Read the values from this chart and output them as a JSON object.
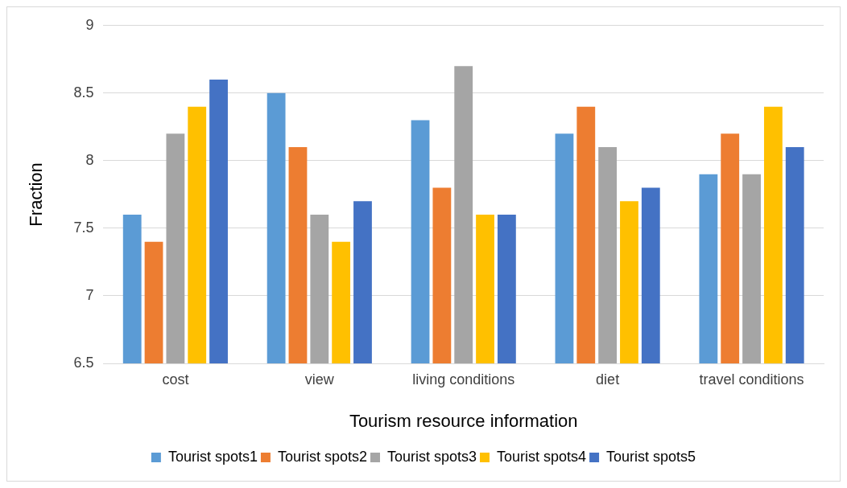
{
  "chart_data": {
    "type": "bar",
    "xlabel": "Tourism resource information",
    "ylabel": "Fraction",
    "categories": [
      "cost",
      "view",
      "living conditions",
      "diet",
      "travel conditions"
    ],
    "series": [
      {
        "name": "Tourist spots1",
        "color": "#5b9bd5",
        "values": [
          7.6,
          8.5,
          8.3,
          8.2,
          7.9
        ]
      },
      {
        "name": "Tourist spots2",
        "color": "#ed7d31",
        "values": [
          7.4,
          8.1,
          7.8,
          8.4,
          8.2
        ]
      },
      {
        "name": "Tourist spots3",
        "color": "#a5a5a5",
        "values": [
          8.2,
          7.6,
          8.7,
          8.1,
          7.9
        ]
      },
      {
        "name": "Tourist spots4",
        "color": "#ffc000",
        "values": [
          8.4,
          7.4,
          7.6,
          7.7,
          8.4
        ]
      },
      {
        "name": "Tourist spots5",
        "color": "#4472c4",
        "values": [
          8.6,
          7.7,
          7.6,
          7.8,
          8.1
        ]
      }
    ],
    "ylim": [
      6.5,
      9
    ],
    "yticks": [
      6.5,
      7,
      7.5,
      8,
      8.5,
      9
    ],
    "grid": "y",
    "legend": "bottom"
  }
}
